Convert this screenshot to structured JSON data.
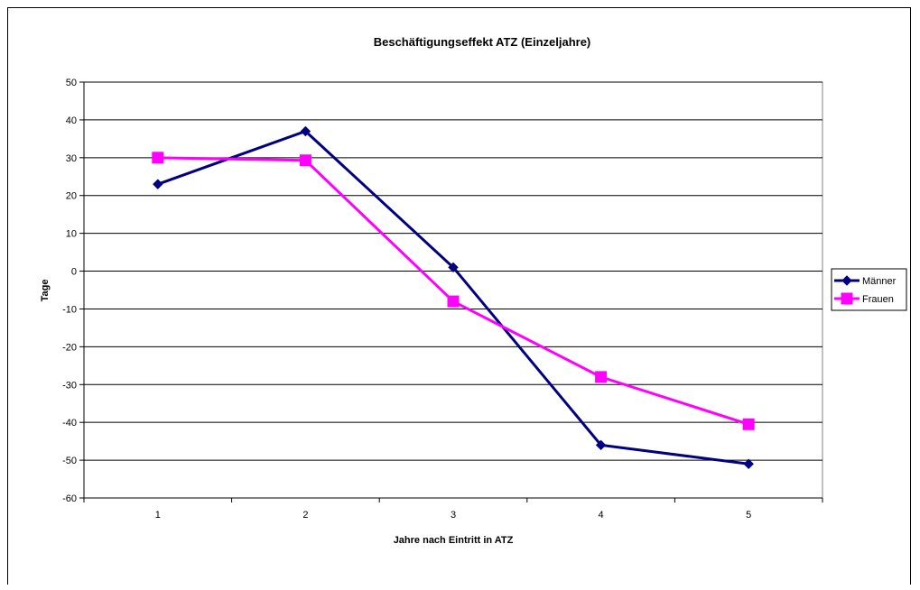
{
  "chart_data": {
    "type": "line",
    "title": "Beschäftigungseffekt ATZ (Einzeljahre)",
    "xlabel": "Jahre nach Eintritt in ATZ",
    "ylabel": "Tage",
    "categories": [
      "1",
      "2",
      "3",
      "4",
      "5"
    ],
    "ylim": [
      -60,
      50
    ],
    "yticks": [
      50,
      40,
      30,
      20,
      10,
      0,
      -10,
      -20,
      -30,
      -40,
      -50,
      -60
    ],
    "grid": true,
    "legend_position": "right",
    "series": [
      {
        "name": "Männer",
        "color": "#000080",
        "marker": "diamond",
        "values": [
          23,
          37,
          1,
          -46,
          -51
        ]
      },
      {
        "name": "Frauen",
        "color": "#ff00ff",
        "marker": "square",
        "values": [
          30,
          29.3,
          -8,
          -28,
          -40.5
        ]
      }
    ]
  }
}
